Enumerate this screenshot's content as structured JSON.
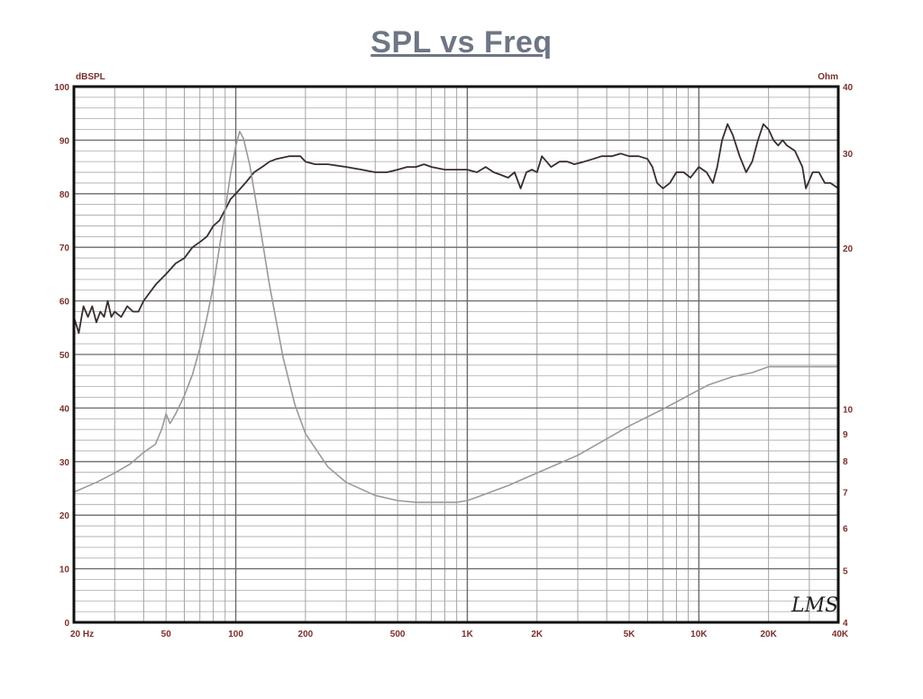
{
  "title": "SPL vs Freq",
  "watermark": "LMS",
  "chart_data": {
    "type": "line",
    "title": "SPL vs Freq",
    "xlabel": "",
    "ylabel_left": "dBSPL",
    "ylabel_right": "Ohm",
    "x_scale": "log",
    "xlim": [
      20,
      40000
    ],
    "ylim_left": [
      0,
      100
    ],
    "ylim_right": [
      4,
      40
    ],
    "y_right_scale": "log",
    "grid": true,
    "x_ticks": [
      {
        "value": 20,
        "label": "20  Hz"
      },
      {
        "value": 50,
        "label": "50"
      },
      {
        "value": 100,
        "label": "100"
      },
      {
        "value": 200,
        "label": "200"
      },
      {
        "value": 500,
        "label": "500"
      },
      {
        "value": 1000,
        "label": "1K"
      },
      {
        "value": 2000,
        "label": "2K"
      },
      {
        "value": 5000,
        "label": "5K"
      },
      {
        "value": 10000,
        "label": "10K"
      },
      {
        "value": 20000,
        "label": "20K"
      },
      {
        "value": 40000,
        "label": "40K"
      }
    ],
    "y_left_ticks": [
      "0",
      "10",
      "20",
      "30",
      "40",
      "50",
      "60",
      "70",
      "80",
      "90",
      "100"
    ],
    "y_right_ticks": [
      {
        "value": 4,
        "label": "4"
      },
      {
        "value": 5,
        "label": "5"
      },
      {
        "value": 6,
        "label": "6"
      },
      {
        "value": 7,
        "label": "7"
      },
      {
        "value": 8,
        "label": "8"
      },
      {
        "value": 9,
        "label": "9"
      },
      {
        "value": 10,
        "label": "10"
      },
      {
        "value": 20,
        "label": "20"
      },
      {
        "value": 30,
        "label": "30"
      },
      {
        "value": 40,
        "label": "40"
      }
    ],
    "series": [
      {
        "axis": "left",
        "color": "#3a2d2d",
        "points": [
          [
            20,
            57
          ],
          [
            21,
            54
          ],
          [
            22,
            59
          ],
          [
            23,
            57
          ],
          [
            24,
            59
          ],
          [
            25,
            56
          ],
          [
            26,
            58
          ],
          [
            27,
            57
          ],
          [
            28,
            60
          ],
          [
            29,
            57
          ],
          [
            30,
            58
          ],
          [
            32,
            57
          ],
          [
            34,
            59
          ],
          [
            36,
            58
          ],
          [
            38,
            58
          ],
          [
            40,
            60
          ],
          [
            45,
            63
          ],
          [
            50,
            65
          ],
          [
            55,
            67
          ],
          [
            60,
            68
          ],
          [
            65,
            70
          ],
          [
            70,
            71
          ],
          [
            75,
            72
          ],
          [
            80,
            74
          ],
          [
            85,
            75
          ],
          [
            90,
            77
          ],
          [
            95,
            79
          ],
          [
            100,
            80
          ],
          [
            110,
            82
          ],
          [
            120,
            84
          ],
          [
            130,
            85
          ],
          [
            140,
            86
          ],
          [
            150,
            86.5
          ],
          [
            170,
            87
          ],
          [
            190,
            87
          ],
          [
            200,
            86
          ],
          [
            220,
            85.5
          ],
          [
            250,
            85.5
          ],
          [
            300,
            85
          ],
          [
            350,
            84.5
          ],
          [
            400,
            84
          ],
          [
            450,
            84
          ],
          [
            500,
            84.5
          ],
          [
            550,
            85
          ],
          [
            600,
            85
          ],
          [
            650,
            85.5
          ],
          [
            700,
            85
          ],
          [
            800,
            84.5
          ],
          [
            900,
            84.5
          ],
          [
            1000,
            84.5
          ],
          [
            1100,
            84
          ],
          [
            1200,
            85
          ],
          [
            1300,
            84
          ],
          [
            1400,
            83.5
          ],
          [
            1500,
            83
          ],
          [
            1600,
            84
          ],
          [
            1700,
            81
          ],
          [
            1800,
            84
          ],
          [
            1900,
            84.5
          ],
          [
            2000,
            84
          ],
          [
            2100,
            87
          ],
          [
            2200,
            86
          ],
          [
            2300,
            85
          ],
          [
            2500,
            86
          ],
          [
            2700,
            86
          ],
          [
            2900,
            85.5
          ],
          [
            3200,
            86
          ],
          [
            3500,
            86.5
          ],
          [
            3800,
            87
          ],
          [
            4200,
            87
          ],
          [
            4600,
            87.5
          ],
          [
            5000,
            87
          ],
          [
            5500,
            87
          ],
          [
            6000,
            86.5
          ],
          [
            6300,
            85
          ],
          [
            6600,
            82
          ],
          [
            7000,
            81
          ],
          [
            7500,
            82
          ],
          [
            8000,
            84
          ],
          [
            8600,
            84
          ],
          [
            9200,
            83
          ],
          [
            10000,
            85
          ],
          [
            10800,
            84
          ],
          [
            11500,
            82
          ],
          [
            12000,
            85
          ],
          [
            12600,
            90
          ],
          [
            13300,
            93
          ],
          [
            14000,
            91
          ],
          [
            15000,
            87
          ],
          [
            16000,
            84
          ],
          [
            17000,
            86
          ],
          [
            18000,
            90
          ],
          [
            19000,
            93
          ],
          [
            20000,
            92
          ],
          [
            21000,
            90
          ],
          [
            22000,
            89
          ],
          [
            23000,
            90
          ],
          [
            24000,
            89
          ],
          [
            26000,
            88
          ],
          [
            28000,
            85
          ],
          [
            29000,
            81
          ],
          [
            31000,
            84
          ],
          [
            33000,
            84
          ],
          [
            35000,
            82
          ],
          [
            37000,
            82
          ],
          [
            40000,
            81
          ]
        ]
      },
      {
        "axis": "right",
        "color": "#9a9a9a",
        "points": [
          [
            20,
            7
          ],
          [
            25,
            7.3
          ],
          [
            30,
            7.6
          ],
          [
            35,
            7.9
          ],
          [
            40,
            8.3
          ],
          [
            45,
            8.6
          ],
          [
            48,
            9.2
          ],
          [
            50,
            9.8
          ],
          [
            52,
            9.4
          ],
          [
            55,
            9.8
          ],
          [
            60,
            10.6
          ],
          [
            65,
            11.6
          ],
          [
            70,
            13
          ],
          [
            75,
            14.8
          ],
          [
            80,
            17
          ],
          [
            85,
            20
          ],
          [
            90,
            23.5
          ],
          [
            95,
            27.5
          ],
          [
            100,
            31
          ],
          [
            104,
            33
          ],
          [
            108,
            32
          ],
          [
            115,
            28.5
          ],
          [
            125,
            23
          ],
          [
            140,
            17
          ],
          [
            160,
            12.5
          ],
          [
            180,
            10.2
          ],
          [
            200,
            9
          ],
          [
            250,
            7.8
          ],
          [
            300,
            7.3
          ],
          [
            400,
            6.9
          ],
          [
            500,
            6.75
          ],
          [
            600,
            6.7
          ],
          [
            700,
            6.7
          ],
          [
            800,
            6.7
          ],
          [
            900,
            6.7
          ],
          [
            1000,
            6.75
          ],
          [
            1100,
            6.85
          ],
          [
            1500,
            7.2
          ],
          [
            2000,
            7.6
          ],
          [
            3000,
            8.2
          ],
          [
            4000,
            8.8
          ],
          [
            5000,
            9.3
          ],
          [
            7000,
            10
          ],
          [
            9000,
            10.6
          ],
          [
            11000,
            11.1
          ],
          [
            14000,
            11.5
          ],
          [
            17000,
            11.7
          ],
          [
            20000,
            12
          ],
          [
            25000,
            12
          ],
          [
            30000,
            12
          ],
          [
            35000,
            12
          ],
          [
            40000,
            12
          ]
        ]
      }
    ]
  }
}
